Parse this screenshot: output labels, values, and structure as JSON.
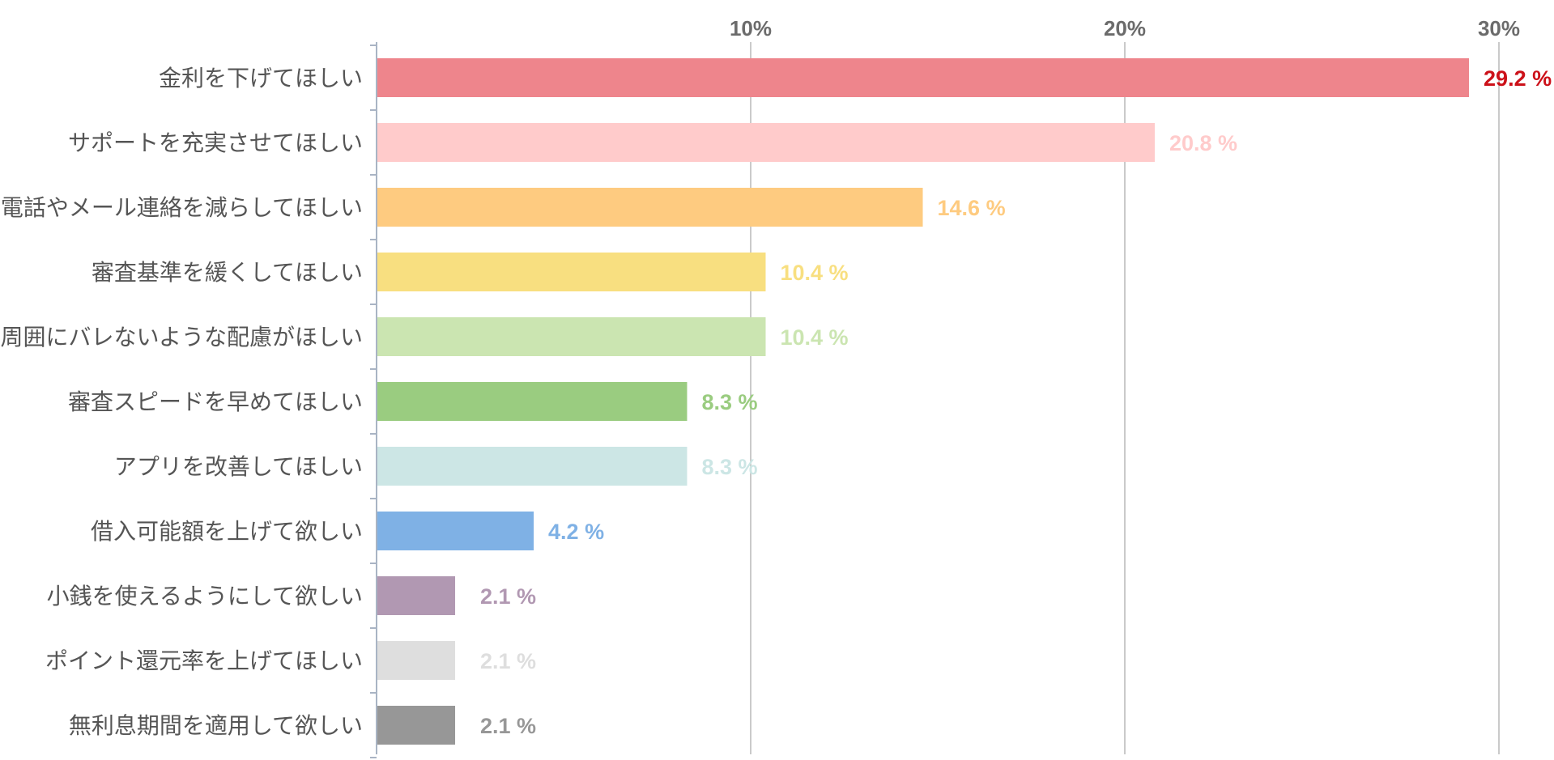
{
  "chart_data": {
    "type": "bar",
    "orientation": "horizontal",
    "categories": [
      "金利を下げてほしい",
      "サポートを充実させてほしい",
      "電話やメール連絡を減らしてほしい",
      "審査基準を緩くしてほしい",
      "周囲にバレないような配慮がほしい",
      "審査スピードを早めてほしい",
      "アプリを改善してほしい",
      "借入可能額を上げて欲しい",
      "小銭を使えるようにして欲しい",
      "ポイント還元率を上げてほしい",
      "無利息期間を適用して欲しい"
    ],
    "values": [
      29.2,
      20.8,
      14.6,
      10.4,
      10.4,
      8.3,
      8.3,
      4.2,
      2.1,
      2.1,
      2.1
    ],
    "value_labels": [
      "29.2 %",
      "20.8 %",
      "14.6 %",
      "10.4 %",
      "10.4 %",
      "8.3 %",
      "8.3 %",
      "4.2 %",
      "2.1 %",
      "2.1 %",
      "2.1 %"
    ],
    "bar_colors": [
      "#ee858c",
      "#ffcbcb",
      "#fecb80",
      "#f8df80",
      "#cbe5b1",
      "#9acc80",
      "#cce6e5",
      "#7fb1e5",
      "#b198b2",
      "#dedede",
      "#979797"
    ],
    "label_colors": [
      "#cc1119",
      "#ffcbcb",
      "#fecb80",
      "#f8df80",
      "#cbe5b1",
      "#9acc80",
      "#cce6e5",
      "#7fb1e5",
      "#b198b2",
      "#dedede",
      "#979797"
    ],
    "xticks": [
      10,
      20,
      30
    ],
    "xtick_labels": [
      "10%",
      "20%",
      "30%"
    ],
    "xlim": [
      0,
      31
    ],
    "grid": true,
    "title": "",
    "xlabel": "",
    "ylabel": ""
  }
}
